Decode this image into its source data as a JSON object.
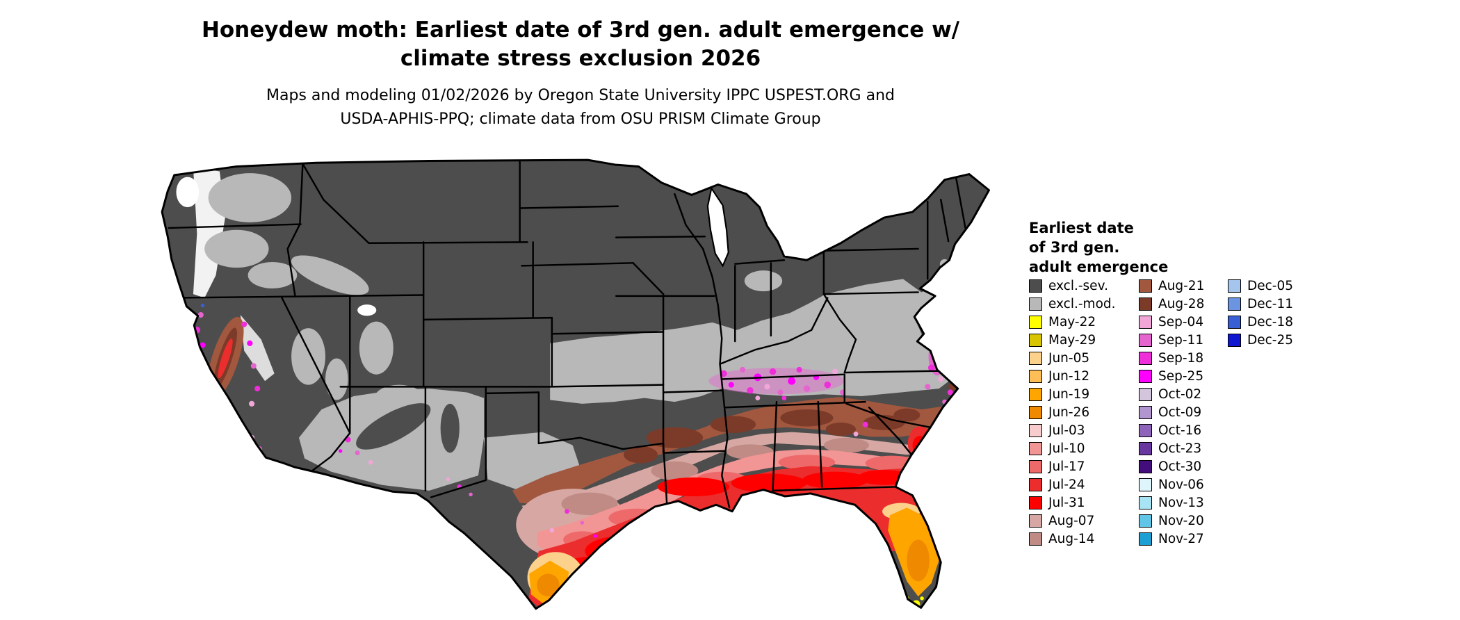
{
  "header": {
    "title_line1": "Honeydew moth: Earliest date of 3rd gen. adult emergence w/",
    "title_line2": "climate stress exclusion 2026",
    "subtitle_line1": "Maps and modeling 01/02/2026 by Oregon State University IPPC USPEST.ORG and",
    "subtitle_line2": "USDA-APHIS-PPQ; climate data from OSU PRISM Climate Group"
  },
  "legend": {
    "title_line1": "Earliest date",
    "title_line2": "of 3rd gen.",
    "title_line3": "adult emergence",
    "columns": [
      [
        {
          "label": "excl.-sev.",
          "color": "#4D4D4D"
        },
        {
          "label": "excl.-mod.",
          "color": "#B8B8B8"
        },
        {
          "label": "May-22",
          "color": "#FFFF00"
        },
        {
          "label": "May-29",
          "color": "#D9C400"
        },
        {
          "label": "Jun-05",
          "color": "#FBD18B"
        },
        {
          "label": "Jun-12",
          "color": "#FDBE57"
        },
        {
          "label": "Jun-19",
          "color": "#FFA500"
        },
        {
          "label": "Jun-26",
          "color": "#EF8900"
        },
        {
          "label": "Jul-03",
          "color": "#F8CCCC"
        },
        {
          "label": "Jul-10",
          "color": "#F29595"
        },
        {
          "label": "Jul-17",
          "color": "#EE6A6A"
        },
        {
          "label": "Jul-24",
          "color": "#EC2D2D"
        },
        {
          "label": "Jul-31",
          "color": "#FE0000"
        },
        {
          "label": "Aug-07",
          "color": "#D7A8A3"
        },
        {
          "label": "Aug-14",
          "color": "#C08B85"
        }
      ],
      [
        {
          "label": "Aug-21",
          "color": "#A2573F"
        },
        {
          "label": "Aug-28",
          "color": "#7C3A28"
        },
        {
          "label": "Sep-04",
          "color": "#F0A7D8"
        },
        {
          "label": "Sep-11",
          "color": "#E565CE"
        },
        {
          "label": "Sep-18",
          "color": "#EE2FD9"
        },
        {
          "label": "Sep-25",
          "color": "#FF00FF"
        },
        {
          "label": "Oct-02",
          "color": "#D3C6DC"
        },
        {
          "label": "Oct-09",
          "color": "#B195CE"
        },
        {
          "label": "Oct-16",
          "color": "#8D64BA"
        },
        {
          "label": "Oct-23",
          "color": "#6837A0"
        },
        {
          "label": "Oct-30",
          "color": "#430E7C"
        },
        {
          "label": "Nov-06",
          "color": "#DFF5FC"
        },
        {
          "label": "Nov-13",
          "color": "#A9E4F4"
        },
        {
          "label": "Nov-20",
          "color": "#61C5E7"
        },
        {
          "label": "Nov-27",
          "color": "#1E9FD4"
        }
      ],
      [
        {
          "label": "Dec-05",
          "color": "#A6C5ED"
        },
        {
          "label": "Dec-11",
          "color": "#6B94E1"
        },
        {
          "label": "Dec-18",
          "color": "#3860D4"
        },
        {
          "label": "Dec-25",
          "color": "#0F17D1"
        }
      ]
    ]
  }
}
